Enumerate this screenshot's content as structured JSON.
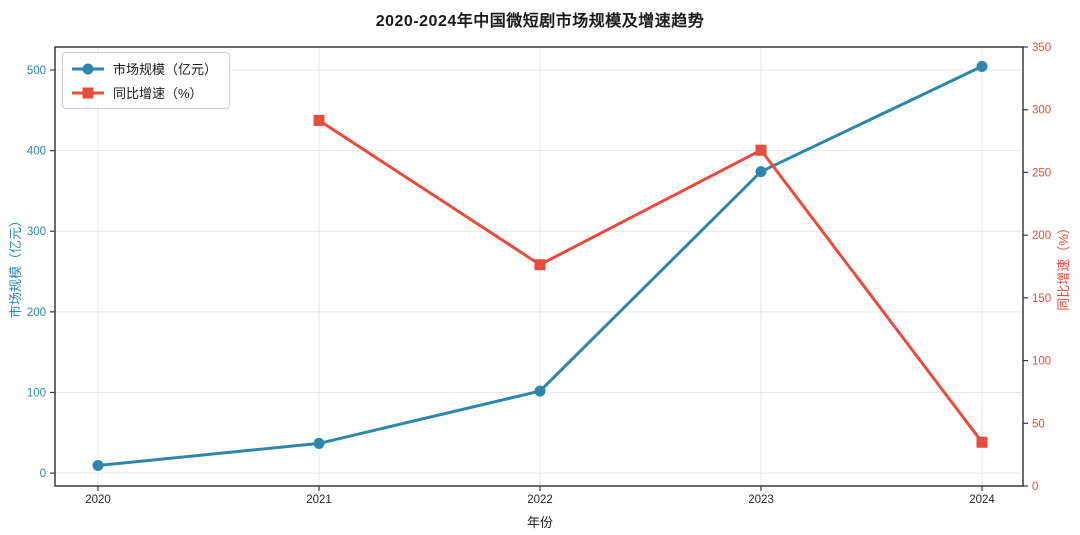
{
  "chart_data": {
    "type": "line",
    "title": "2020-2024年中国微短剧市场规模及增速趋势",
    "xlabel": "年份",
    "ylabel_left": "市场规模（亿元）",
    "ylabel_right": "同比增速（%）",
    "categories": [
      "2020",
      "2021",
      "2022",
      "2023",
      "2024"
    ],
    "series": [
      {
        "name": "市场规模（亿元）",
        "axis": "left",
        "marker": "circle",
        "color": "#2E86AB",
        "values": [
          9.4,
          36.8,
          101.7,
          373.9,
          504.4
        ]
      },
      {
        "name": "同比增速（%）",
        "axis": "right",
        "marker": "square",
        "color": "#E74C3C",
        "values": [
          null,
          291.5,
          176.4,
          267.7,
          34.9
        ]
      }
    ],
    "yticks_left": [
      0,
      100,
      200,
      300,
      400,
      500
    ],
    "yticks_right": [
      0,
      50,
      100,
      150,
      200,
      250,
      300,
      350
    ],
    "ylim_left": [
      -16,
      528.5
    ],
    "ylim_right": [
      0,
      350
    ],
    "grid": true,
    "legend_position": "upper left",
    "styles": {
      "grid_color": "#e7e7e7",
      "spine_color": "#3a3a3a",
      "tick_text_color": "#262626",
      "title_color": "#1a1a1a",
      "background": "#ffffff"
    }
  }
}
